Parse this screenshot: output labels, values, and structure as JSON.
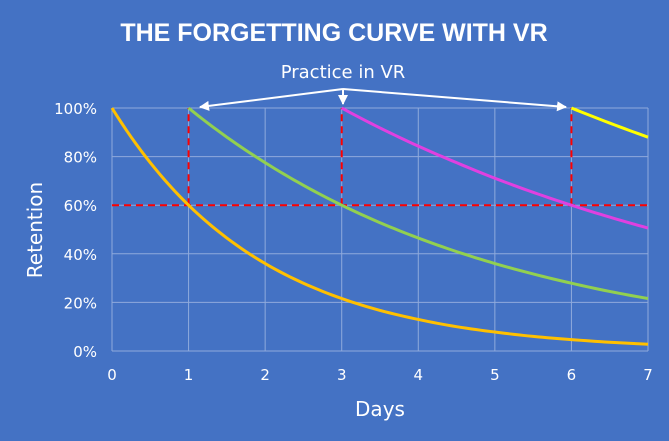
{
  "chart_data": {
    "type": "line",
    "title": "THE FORGETTING CURVE WITH VR",
    "annotation": "Practice in VR",
    "xlabel": "Days",
    "ylabel": "Retention",
    "xlim": [
      0,
      7
    ],
    "ylim": [
      0,
      100
    ],
    "x_ticks": [
      "0",
      "1",
      "2",
      "3",
      "4",
      "5",
      "6",
      "7"
    ],
    "y_ticks": [
      "0%",
      "20%",
      "40%",
      "60%",
      "80%",
      "100%"
    ],
    "grid": true,
    "background_color": "#4472C4",
    "threshold": {
      "y": 60,
      "color": "#FF0000",
      "style": "dashed"
    },
    "practice_days": [
      1,
      3,
      6
    ],
    "series": [
      {
        "color": "#FFC000",
        "x": [
          0,
          0.5,
          1,
          1.5,
          2,
          2.5,
          3,
          3.5,
          4,
          4.5,
          5,
          5.5,
          6,
          6.5,
          7
        ],
        "y": [
          100,
          77.5,
          60,
          46.5,
          36,
          27.9,
          21.6,
          16.7,
          13,
          10,
          7.8,
          6,
          4.7,
          3.6,
          2.8
        ]
      },
      {
        "color": "#92D050",
        "x": [
          1,
          1.5,
          2,
          2.5,
          3,
          3.5,
          4,
          4.5,
          5,
          5.5,
          6,
          6.5,
          7
        ],
        "y": [
          100,
          88,
          77.5,
          68.2,
          60,
          52.8,
          46.5,
          40.9,
          36,
          31.7,
          27.9,
          24.5,
          21.6
        ]
      },
      {
        "color": "#E040E0",
        "x": [
          3,
          3.5,
          4,
          4.5,
          5,
          5.5,
          6,
          6.5,
          7
        ],
        "y": [
          100,
          91.8,
          84.3,
          77.5,
          71.1,
          65.3,
          60,
          55.1,
          50.6
        ]
      },
      {
        "color": "#FFFF00",
        "x": [
          6,
          6.5,
          7
        ],
        "y": [
          100,
          93.8,
          88
        ]
      }
    ]
  }
}
